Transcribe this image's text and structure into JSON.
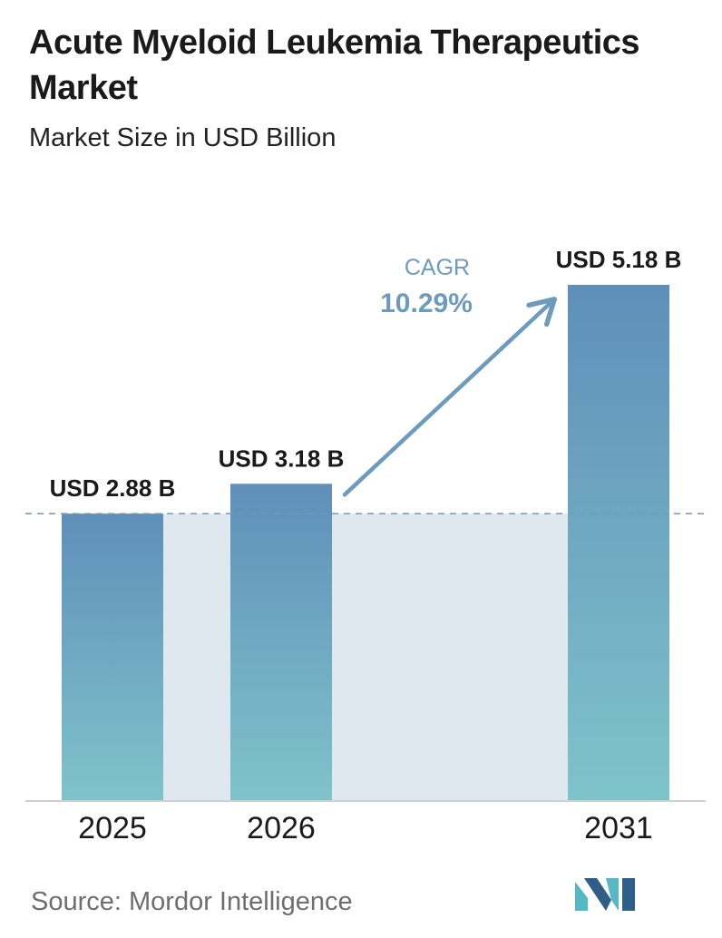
{
  "title": "Acute Myeloid Leukemia Therapeutics Market",
  "subtitle": "Market Size in USD Billion",
  "source": "Source:  Mordor Intelligence",
  "cagr_label": "CAGR",
  "cagr_value": "10.29%",
  "colors": {
    "bar_top": "#5f8fb9",
    "bar_bottom": "#7fc3ca",
    "band": "#dfe8ef",
    "arrow": "#6c9bbd",
    "cagr_text": "#6c9bbd",
    "dashed": "#6c9bbd",
    "axis": "#cfcfcf",
    "logo_dark": "#2f5f88",
    "logo_light": "#54b9c4"
  },
  "chart_data": {
    "type": "bar",
    "title": "Acute Myeloid Leukemia Therapeutics Market",
    "subtitle": "Market Size in USD Billion",
    "categories": [
      "2025",
      "2026",
      "2031"
    ],
    "values": [
      2.88,
      3.18,
      5.18
    ],
    "value_labels": [
      "USD 2.88 B",
      "USD 3.18 B",
      "USD 5.18 B"
    ],
    "unit": "USD Billion",
    "ylim": [
      0,
      5.18
    ],
    "grid": false,
    "annotation": {
      "label": "CAGR",
      "value": "10.29%",
      "from": "2026",
      "to": "2031"
    },
    "reference_line": {
      "value": 2.88,
      "style": "dashed"
    }
  }
}
